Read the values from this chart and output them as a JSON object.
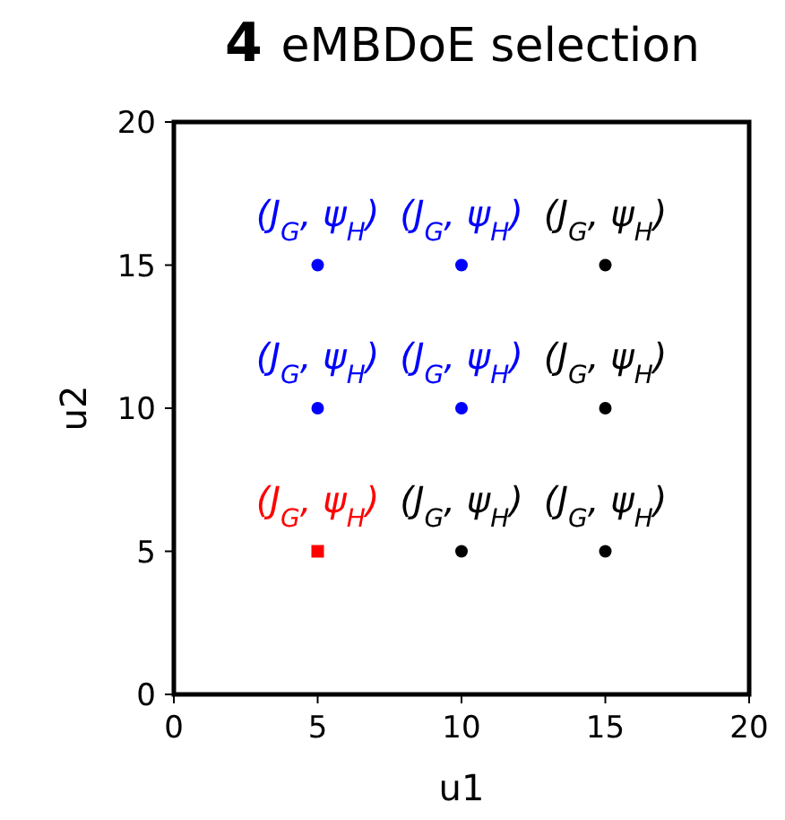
{
  "chart_data": {
    "type": "scatter",
    "title": "eMBDoE selection",
    "xlabel": "u1",
    "ylabel": "u2",
    "xlim": [
      0,
      20
    ],
    "ylim": [
      0,
      20
    ],
    "xticks": [
      0,
      5,
      10,
      15,
      20
    ],
    "yticks": [
      0,
      5,
      10,
      15,
      20
    ],
    "grid": false,
    "series": [
      {
        "color": "#0000ff",
        "marker": "circle",
        "x": [
          5,
          10,
          5,
          10
        ],
        "values": [
          15,
          15,
          10,
          10
        ]
      },
      {
        "color": "#000000",
        "marker": "circle",
        "x": [
          15,
          15,
          10,
          15
        ],
        "values": [
          15,
          10,
          5,
          5
        ]
      },
      {
        "color": "#ff0000",
        "marker": "square",
        "x": [
          5
        ],
        "values": [
          5
        ]
      }
    ],
    "annotations": [
      "4",
      {
        "text": "(J$_{G}$, ψ$_{H}$)",
        "x": 5,
        "y": 15
      },
      {
        "text": "(J$_{G}$, ψ$_{H}$)",
        "x": 10,
        "y": 15
      },
      {
        "text": "(J$_{G}$, ψ$_{H}$)",
        "x": 15,
        "y": 15
      },
      {
        "text": "(J$_{G}$, ψ$_{H}$)",
        "x": 5,
        "y": 10
      },
      {
        "text": "(J$_{G}$, ψ$_{H}$)",
        "x": 10,
        "y": 10
      },
      {
        "text": "(J$_{G}$, ψ$_{H}$)",
        "x": 15,
        "y": 10
      },
      {
        "text": "(J$_{G}$, ψ$_{H}$)",
        "x": 5,
        "y": 5
      },
      {
        "text": "(J$_{G}$, ψ$_{H}$)",
        "x": 10,
        "y": 5
      },
      {
        "text": "(J$_{G}$, ψ$_{H}$)",
        "x": 15,
        "y": 5
      }
    ]
  }
}
